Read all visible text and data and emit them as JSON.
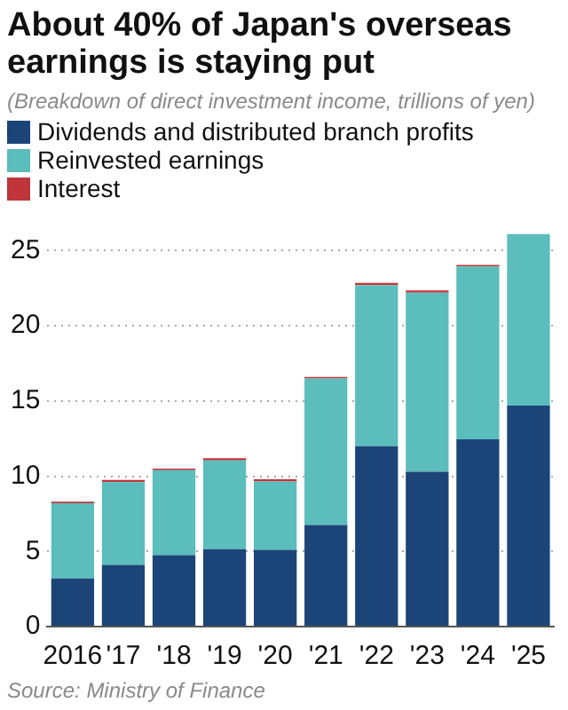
{
  "chart_data": {
    "type": "bar",
    "title": "About 40% of Japan's overseas earnings is staying put",
    "subtitle": "(Breakdown of direct investment income, trillions of yen)",
    "categories": [
      "2016",
      "'17",
      "'18",
      "'19",
      "'20",
      "'21",
      "'22",
      "'23",
      "'24",
      "'25"
    ],
    "series": [
      {
        "name": "Dividends and distributed branch profits",
        "color": "#1b4578",
        "values": [
          3.2,
          4.1,
          4.75,
          5.15,
          5.1,
          6.75,
          12.0,
          10.3,
          12.45,
          14.7
        ]
      },
      {
        "name": "Reinvested earnings",
        "color": "#5bbdbc",
        "values": [
          5.0,
          5.5,
          5.65,
          5.9,
          4.55,
          9.75,
          10.7,
          11.9,
          11.5,
          11.4
        ]
      },
      {
        "name": "Interest",
        "color": "#c0353a",
        "values": [
          0.1,
          0.15,
          0.1,
          0.15,
          0.15,
          0.1,
          0.15,
          0.15,
          0.1,
          null
        ]
      }
    ],
    "stacked": true,
    "ylim": [
      0,
      26.2
    ],
    "yticks": [
      0,
      5,
      10,
      15,
      20,
      25
    ],
    "grid": "y",
    "legend": "top left",
    "annotations": [
      "Source: Ministry of Finance"
    ]
  }
}
